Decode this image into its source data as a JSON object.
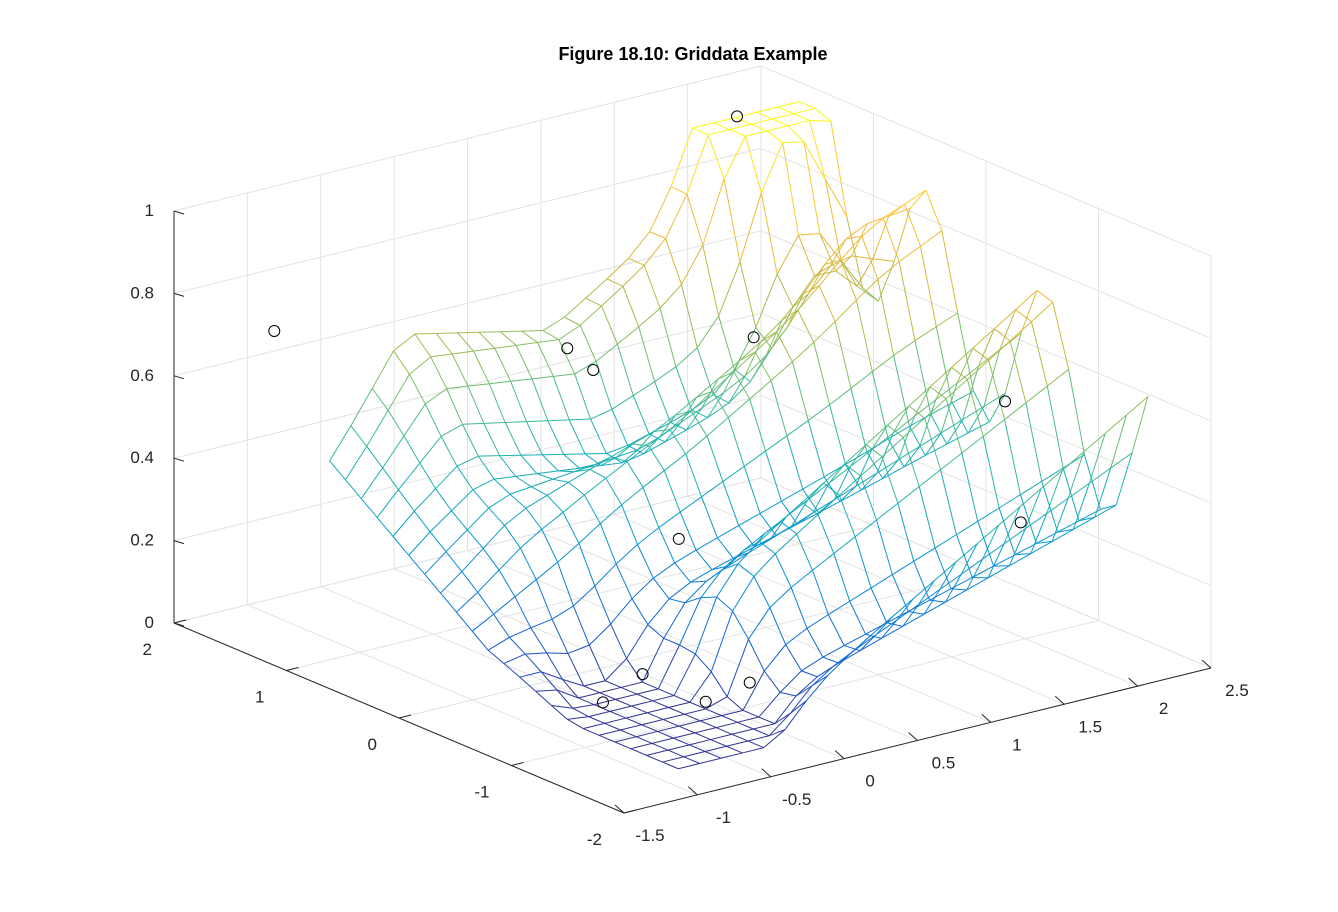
{
  "chart_data": {
    "type": "mesh",
    "title": "Figure 18.10: Griddata Example",
    "xlabel": "",
    "ylabel": "",
    "zlabel": "",
    "grid": true,
    "colormap": "parula",
    "xlim": [
      -1.5,
      2.5
    ],
    "ylim": [
      -2,
      2
    ],
    "zlim": [
      0,
      1
    ],
    "x_ticks": [
      "-1.5",
      "-1",
      "-0.5",
      "0",
      "0.5",
      "1",
      "1.5",
      "2",
      "2.5"
    ],
    "y_ticks": [
      "-2",
      "-1",
      "0",
      "1",
      "2"
    ],
    "z_ticks": [
      "0",
      "0.2",
      "0.4",
      "0.6",
      "0.8",
      "1"
    ],
    "scatter_points": [
      {
        "x": -1.2,
        "y": 1.5,
        "z": 0.74
      },
      {
        "x": -0.2,
        "y": 0.2,
        "z": 0.76
      },
      {
        "x": -0.1,
        "y": 0.1,
        "z": 0.71
      },
      {
        "x": 0.1,
        "y": -0.4,
        "z": 0.34
      },
      {
        "x": -0.3,
        "y": -0.6,
        "z": 0.07
      },
      {
        "x": -0.1,
        "y": -0.9,
        "z": 0.02
      },
      {
        "x": 0.2,
        "y": -0.9,
        "z": 0.04
      },
      {
        "x": -0.8,
        "y": -0.9,
        "z": 0.08
      },
      {
        "x": 1.3,
        "y": 0.5,
        "z": 0.62
      },
      {
        "x": 1.8,
        "y": 1.3,
        "z": 1.02
      },
      {
        "x": 2.4,
        "y": -0.3,
        "z": 0.46
      },
      {
        "x": 2.2,
        "y": -0.7,
        "z": 0.23
      }
    ]
  }
}
